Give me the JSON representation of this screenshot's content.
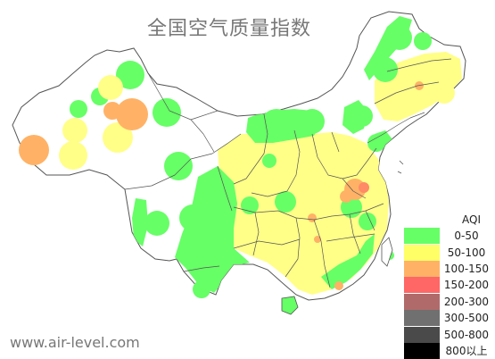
{
  "title": "全国空气质量指数",
  "watermark": "www.air-level.com",
  "legend": {
    "title": "AQI",
    "items": [
      {
        "label": "0-50",
        "color": "#66ff66"
      },
      {
        "label": "50-100",
        "color": "#ffff66"
      },
      {
        "label": "100-150",
        "color": "#ffb266"
      },
      {
        "label": "150-200",
        "color": "#ff6666"
      },
      {
        "label": "200-300",
        "color": "#b06a6a"
      },
      {
        "label": "300-500",
        "color": "#707070"
      },
      {
        "label": "500-800",
        "color": "#4a4a4a"
      },
      {
        "label": "800以上",
        "color": "#000000"
      }
    ]
  }
}
